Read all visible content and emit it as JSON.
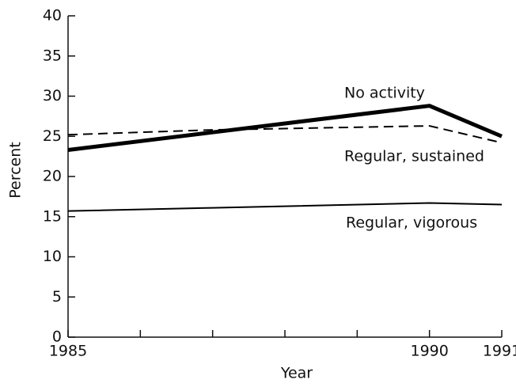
{
  "chart_data": {
    "type": "line",
    "x_label": "Year",
    "y_label": "Percent",
    "x": [
      1985,
      1987,
      1990,
      1991
    ],
    "series": [
      {
        "name": "No activity",
        "color": "#000000",
        "style": "thick",
        "values": [
          23.3,
          25.5,
          28.8,
          25.0
        ]
      },
      {
        "name": "Regular, sustained",
        "color": "#000000",
        "style": "dashed",
        "values": [
          25.2,
          25.8,
          26.3,
          24.2
        ]
      },
      {
        "name": "Regular, vigorous",
        "color": "#000000",
        "style": "thin",
        "values": [
          15.7,
          16.1,
          16.7,
          16.5
        ]
      }
    ],
    "xlim": [
      1985,
      1991
    ],
    "xticks": [
      1985,
      1990,
      1991
    ],
    "xminorticks": [
      1986,
      1987,
      1988,
      1989
    ],
    "ylim": [
      0,
      40
    ],
    "yticks": [
      0,
      5,
      10,
      15,
      20,
      25,
      30,
      35,
      40
    ],
    "grid": false
  }
}
